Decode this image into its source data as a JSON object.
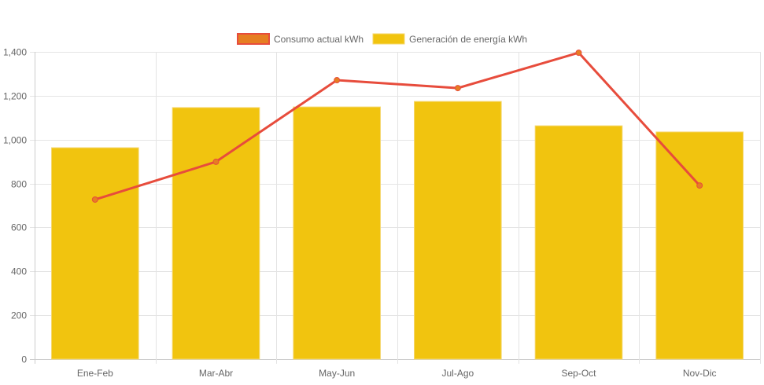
{
  "chart_data": {
    "type": "bar",
    "categories": [
      "Ene-Feb",
      "Mar-Abr",
      "May-Jun",
      "Jul-Ago",
      "Sep-Oct",
      "Nov-Dic"
    ],
    "series": [
      {
        "name": "Consumo actual kWh",
        "type": "line",
        "values": [
          727,
          899,
          1271,
          1235,
          1396,
          791
        ],
        "color": "#e74c3c",
        "point_color": "#e67e22"
      },
      {
        "name": "Generación de energía kWh",
        "type": "bar",
        "values": [
          963,
          1146,
          1149,
          1174,
          1063,
          1035
        ],
        "color": "#f1c40f"
      }
    ],
    "ylim": [
      0,
      1400
    ],
    "yticks": [
      "0",
      "200",
      "400",
      "600",
      "800",
      "1,000",
      "1,200",
      "1,400"
    ],
    "grid": true,
    "legend_position": "top"
  }
}
